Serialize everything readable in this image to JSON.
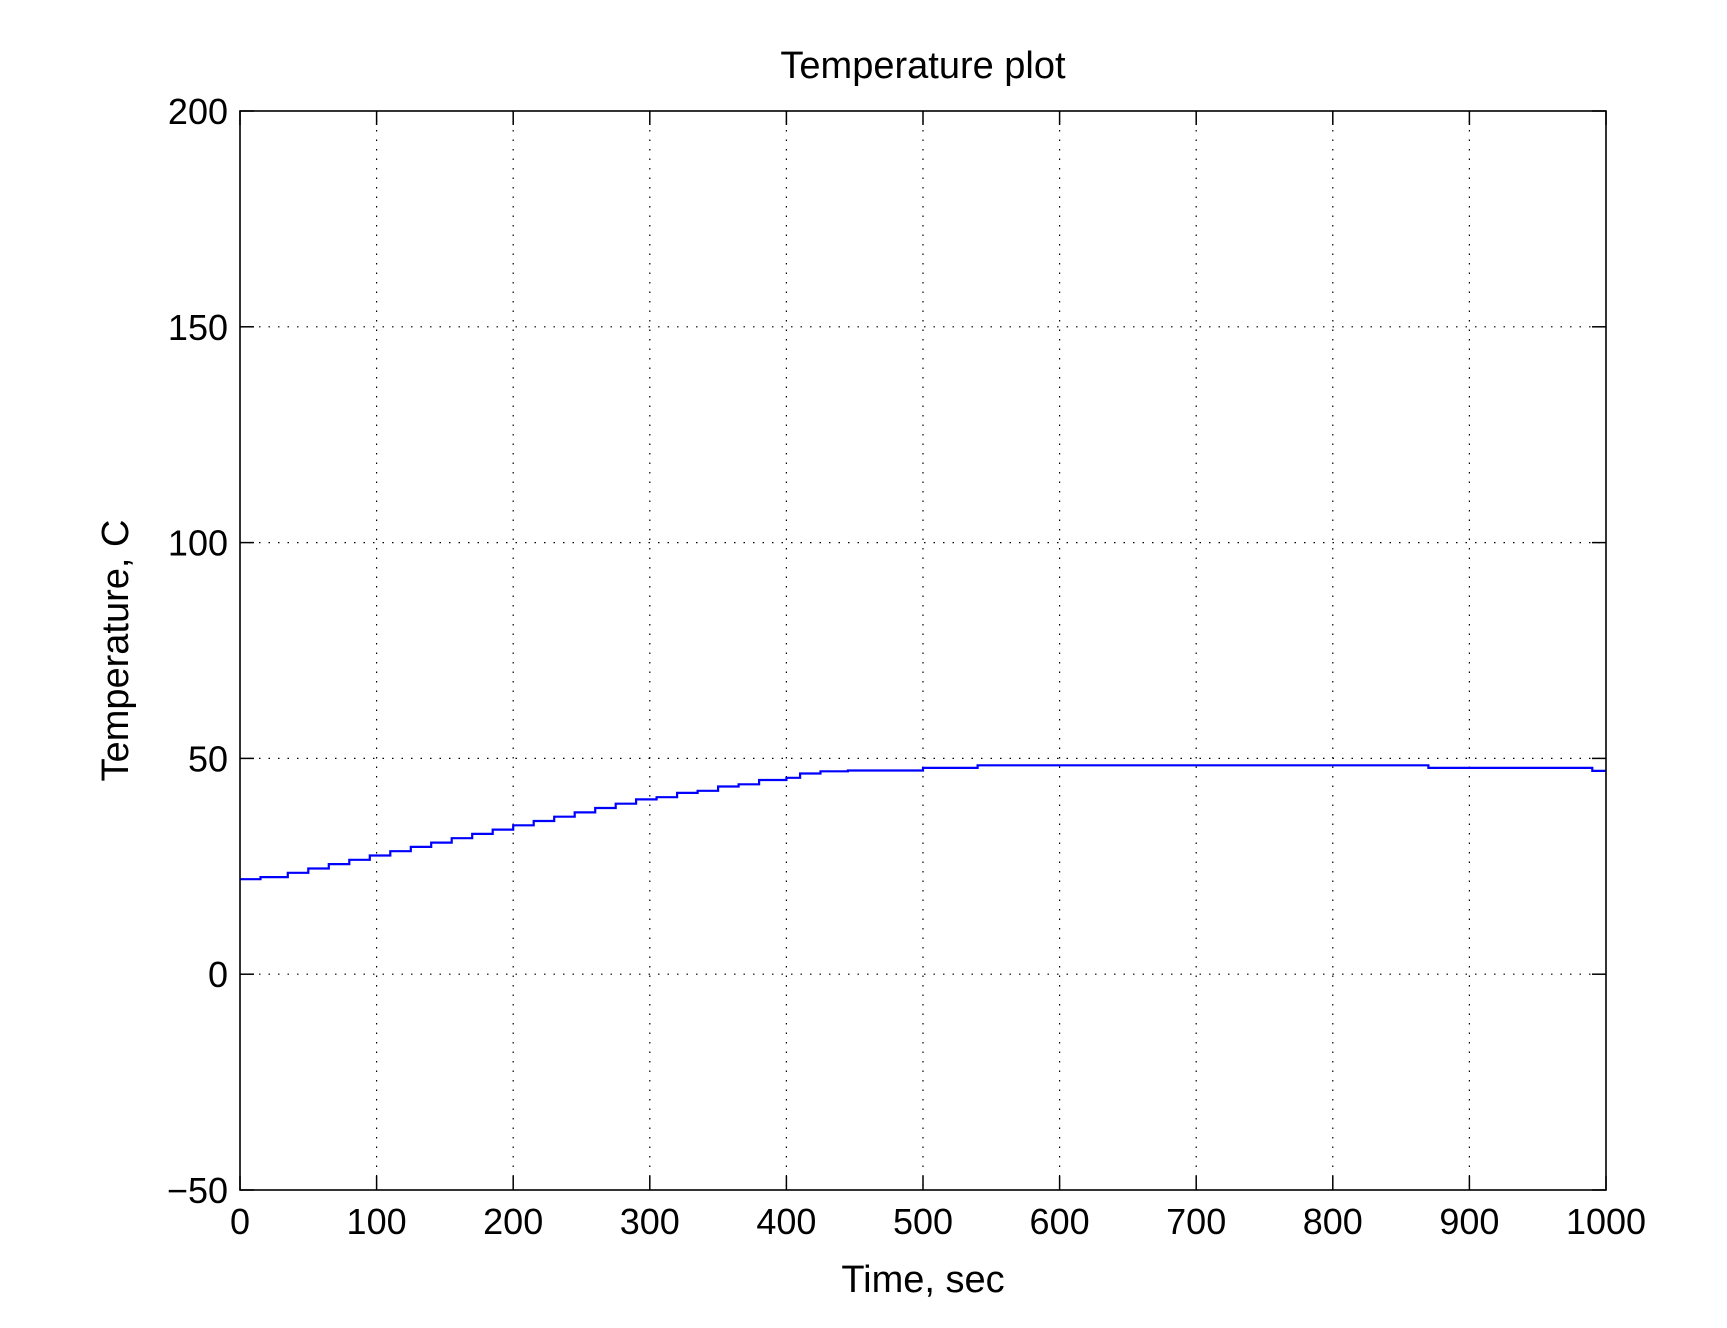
{
  "chart_data": {
    "type": "line",
    "title": "Temperature plot",
    "xlabel": "Time, sec",
    "ylabel": "Temperature, C",
    "xlim": [
      0,
      1000
    ],
    "ylim": [
      -50,
      200
    ],
    "xticks": [
      "0",
      "100",
      "200",
      "300",
      "400",
      "500",
      "600",
      "700",
      "800",
      "900",
      "1000"
    ],
    "yticks": [
      "−50",
      "0",
      "50",
      "100",
      "150",
      "200"
    ],
    "xtick_values": [
      0,
      100,
      200,
      300,
      400,
      500,
      600,
      700,
      800,
      900,
      1000
    ],
    "ytick_values": [
      -50,
      0,
      50,
      100,
      150,
      200
    ],
    "grid": true,
    "line_color": "#0000ff",
    "series": [
      {
        "step": true,
        "x": [
          0,
          15,
          35,
          50,
          65,
          80,
          95,
          110,
          125,
          140,
          155,
          170,
          185,
          200,
          215,
          230,
          245,
          260,
          275,
          290,
          305,
          320,
          335,
          350,
          365,
          380,
          400,
          410,
          425,
          445,
          500,
          540,
          700,
          870,
          990,
          1000
        ],
        "y": [
          22,
          22.5,
          23.5,
          24.5,
          25.5,
          26.5,
          27.5,
          28.5,
          29.5,
          30.5,
          31.5,
          32.5,
          33.5,
          34.5,
          35.5,
          36.5,
          37.5,
          38.5,
          39.5,
          40.5,
          41,
          42,
          42.5,
          43.5,
          44,
          45,
          45.5,
          46.5,
          47,
          47.2,
          47.8,
          48.4,
          48.4,
          47.8,
          47.1,
          47.1
        ]
      }
    ]
  }
}
